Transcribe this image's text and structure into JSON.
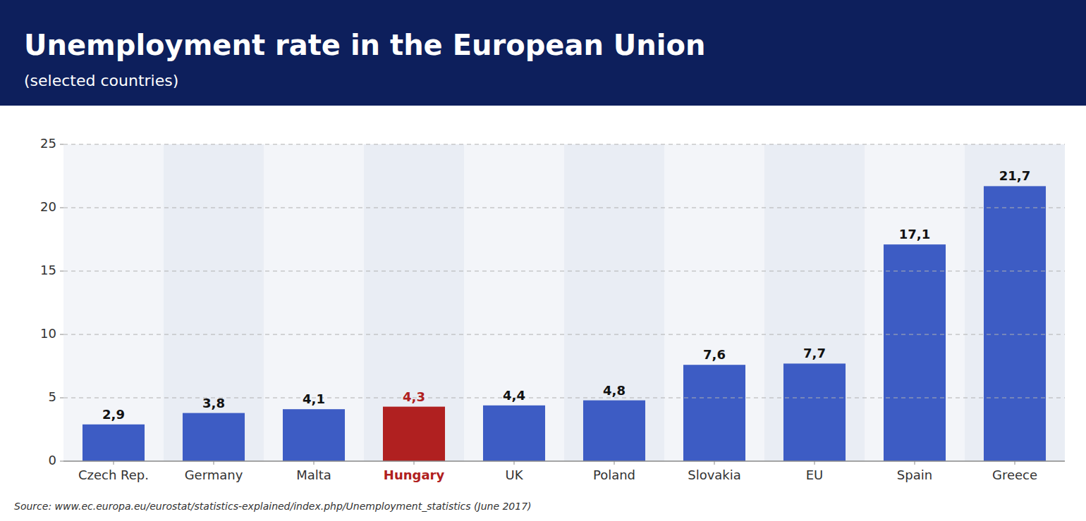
{
  "chart_data": {
    "type": "bar",
    "title": "Unemployment rate in the European Union",
    "subtitle": "(selected countries)",
    "categories": [
      "Czech Rep.",
      "Germany",
      "Malta",
      "Hungary",
      "UK",
      "Poland",
      "Slovakia",
      "EU",
      "Spain",
      "Greece"
    ],
    "values": [
      2.9,
      3.8,
      4.1,
      4.3,
      4.4,
      4.8,
      7.6,
      7.7,
      17.1,
      21.7
    ],
    "value_labels": [
      "2,9",
      "3,8",
      "4,1",
      "4,3",
      "4,4",
      "4,8",
      "7,6",
      "7,7",
      "17,1",
      "21,7"
    ],
    "colors": [
      "#3d5cc4",
      "#3d5cc4",
      "#3d5cc4",
      "#b02020",
      "#3d5cc4",
      "#3d5cc4",
      "#3d5cc4",
      "#3d5cc4",
      "#3d5cc4",
      "#3d5cc4"
    ],
    "ylim": [
      0,
      25
    ],
    "yticks": [
      0,
      5,
      10,
      15,
      20,
      25
    ],
    "grid": true,
    "data_labels": true,
    "annotations": [
      "Source: www.ec.europa.eu/eurostat/statistics-explained/index.php/Unemployment_statistics (June 2017)"
    ]
  }
}
